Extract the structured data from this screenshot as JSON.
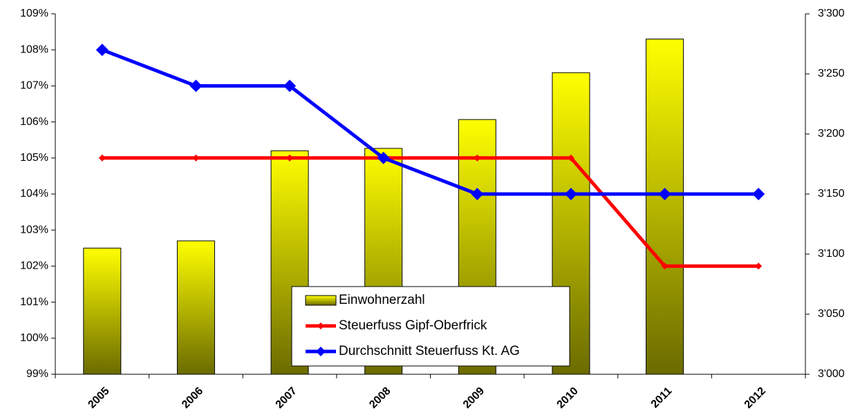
{
  "chart_data": {
    "type": "bar",
    "categories": [
      "2005",
      "2006",
      "2007",
      "2008",
      "2009",
      "2010",
      "2011",
      "2012"
    ],
    "series": [
      {
        "name": "Einwohnerzahl",
        "type": "bar",
        "axis": "y2",
        "color": "#ffff00",
        "values": [
          3105,
          3111,
          3186,
          3188,
          3212,
          3251,
          3279,
          null
        ]
      },
      {
        "name": "Steuerfuss Gipf-Oberfrick",
        "type": "line",
        "color": "#ff0000",
        "values": [
          105,
          105,
          105,
          105,
          105,
          105,
          102,
          102
        ]
      },
      {
        "name": "Durchschnitt Steuerfuss Kt. AG",
        "type": "line",
        "color": "#0000ff",
        "values": [
          108,
          107,
          107,
          105,
          104,
          104,
          104,
          104
        ]
      }
    ],
    "ylim": [
      99,
      109
    ],
    "yticks": [
      {
        "value": 99,
        "label": "99%"
      },
      {
        "value": 100,
        "label": "100%"
      },
      {
        "value": 101,
        "label": "101%"
      },
      {
        "value": 102,
        "label": "102%"
      },
      {
        "value": 103,
        "label": "103%"
      },
      {
        "value": 104,
        "label": "104%"
      },
      {
        "value": 105,
        "label": "105%"
      },
      {
        "value": 106,
        "label": "106%"
      },
      {
        "value": 107,
        "label": "107%"
      },
      {
        "value": 108,
        "label": "108%"
      },
      {
        "value": 109,
        "label": "109%"
      }
    ],
    "y2lim": [
      3000,
      3300
    ],
    "y2ticks": [
      {
        "value": 3000,
        "label": "3'000"
      },
      {
        "value": 3050,
        "label": "3'050"
      },
      {
        "value": 3100,
        "label": "3'100"
      },
      {
        "value": 3150,
        "label": "3'150"
      },
      {
        "value": 3200,
        "label": "3'200"
      },
      {
        "value": 3250,
        "label": "3'250"
      },
      {
        "value": 3300,
        "label": "3'300"
      }
    ]
  }
}
